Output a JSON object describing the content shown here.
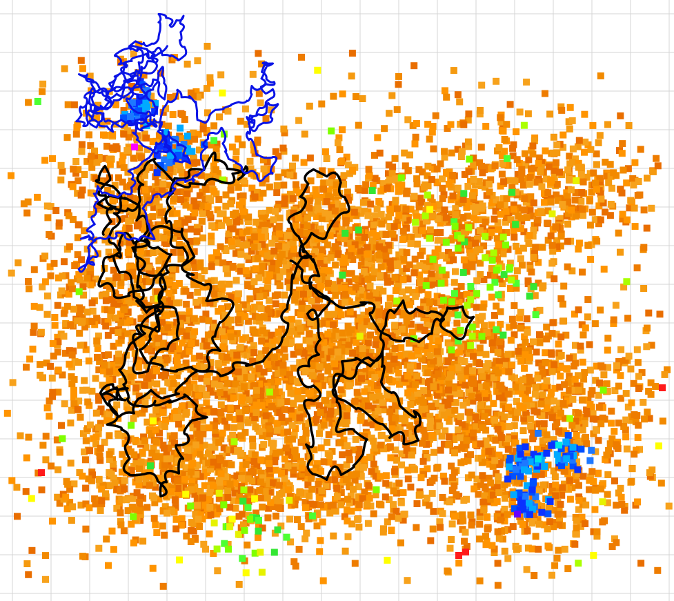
{
  "scene": {
    "background": "#ffffff",
    "grid_color": "#d4d4d4",
    "grid_visible": true
  },
  "colors": {
    "orange": [
      "#f28a00",
      "#f59a10",
      "#ee7c00",
      "#f7a21c",
      "#ff9400",
      "#e96e00"
    ],
    "green": [
      "#7fff00",
      "#4cff33",
      "#aaff00",
      "#33e633"
    ],
    "yellow": [
      "#ffff00",
      "#e6f200"
    ],
    "blue": [
      "#0a32ff",
      "#1e78ff",
      "#00aaff",
      "#0050ff"
    ],
    "cyan": "#00e6e6",
    "magenta": "#ff00ff",
    "purple": "#6a00ff",
    "red": "#ff1a1a",
    "blue_trace": "#0a14e6",
    "black_trace": "#000000"
  },
  "traces": {
    "black_label": "black-trajectory",
    "blue_label": "blue-trajectory"
  }
}
